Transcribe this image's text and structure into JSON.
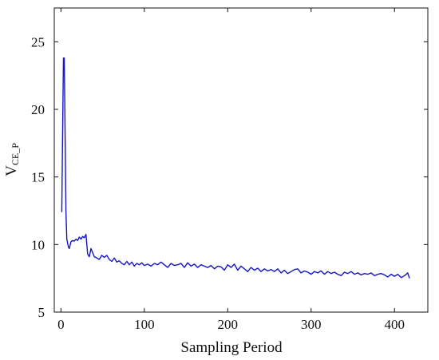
{
  "chart_data": {
    "type": "line",
    "title": "",
    "xlabel": "Sampling Period",
    "ylabel": "V",
    "ylabel_subscript": "CE_P",
    "xlim": [
      -8,
      440
    ],
    "ylim": [
      5,
      27.5
    ],
    "xticks": [
      0,
      100,
      200,
      300,
      400
    ],
    "yticks": [
      5,
      10,
      15,
      20,
      25
    ],
    "grid": false,
    "line_color": "#1515c8",
    "series": [
      {
        "x": [
          1,
          2,
          3,
          4,
          5,
          6,
          7,
          8,
          9,
          10,
          12,
          14,
          16,
          18,
          20,
          22,
          24,
          26,
          28,
          30,
          32,
          34,
          36,
          38,
          40,
          43,
          46,
          49,
          52,
          55,
          58,
          61,
          64,
          67,
          70,
          73,
          76,
          79,
          82,
          85,
          88,
          91,
          94,
          97,
          100,
          104,
          108,
          112,
          116,
          120,
          124,
          128,
          132,
          136,
          140,
          144,
          148,
          152,
          156,
          160,
          164,
          168,
          172,
          176,
          180,
          184,
          188,
          192,
          196,
          200,
          204,
          208,
          212,
          216,
          220,
          224,
          228,
          232,
          236,
          240,
          244,
          248,
          252,
          256,
          260,
          264,
          268,
          272,
          276,
          280,
          284,
          288,
          292,
          296,
          300,
          304,
          308,
          312,
          316,
          320,
          324,
          328,
          332,
          336,
          340,
          344,
          348,
          352,
          356,
          360,
          364,
          368,
          372,
          376,
          380,
          384,
          388,
          392,
          396,
          400,
          404,
          408,
          412,
          416,
          418
        ],
        "y": [
          12.4,
          18,
          23.8,
          23.8,
          18,
          12.5,
          10.4,
          10.1,
          9.8,
          9.7,
          10.2,
          10.3,
          10.25,
          10.4,
          10.3,
          10.55,
          10.4,
          10.6,
          10.5,
          10.75,
          9.3,
          9.1,
          9.7,
          9.4,
          9.1,
          9.0,
          8.9,
          9.2,
          9.05,
          9.2,
          8.9,
          8.75,
          9.0,
          8.7,
          8.8,
          8.6,
          8.5,
          8.75,
          8.5,
          8.7,
          8.4,
          8.6,
          8.5,
          8.65,
          8.45,
          8.55,
          8.4,
          8.6,
          8.5,
          8.7,
          8.5,
          8.3,
          8.6,
          8.45,
          8.5,
          8.6,
          8.3,
          8.65,
          8.4,
          8.55,
          8.3,
          8.5,
          8.4,
          8.3,
          8.45,
          8.2,
          8.4,
          8.35,
          8.1,
          8.5,
          8.3,
          8.55,
          8.1,
          8.4,
          8.2,
          8.0,
          8.3,
          8.1,
          8.25,
          8.0,
          8.2,
          8.05,
          8.15,
          8.0,
          8.2,
          7.9,
          8.1,
          7.85,
          8.0,
          8.15,
          8.2,
          7.9,
          8.05,
          7.95,
          7.8,
          8.0,
          7.9,
          8.05,
          7.8,
          8.0,
          7.85,
          7.95,
          7.8,
          7.7,
          7.95,
          7.85,
          8.0,
          7.8,
          7.9,
          7.75,
          7.85,
          7.8,
          7.9,
          7.7,
          7.8,
          7.85,
          7.75,
          7.6,
          7.8,
          7.65,
          7.8,
          7.55,
          7.7,
          7.9,
          7.5
        ]
      }
    ]
  }
}
